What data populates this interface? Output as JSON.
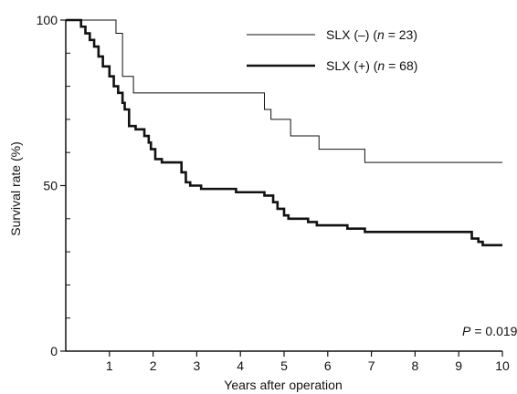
{
  "chart_data": {
    "type": "line",
    "subtype": "kaplan-meier step curves",
    "xlabel": "Years after operation",
    "ylabel": "Survival rate (%)",
    "xlim": [
      0,
      10
    ],
    "ylim": [
      0,
      100
    ],
    "x_ticks": [
      1,
      2,
      3,
      4,
      5,
      6,
      7,
      8,
      9,
      10
    ],
    "y_tick_labels": [
      0,
      50,
      100
    ],
    "y_minor_ticks": [
      10,
      20,
      30,
      40,
      60,
      70,
      80,
      90
    ],
    "grid": false,
    "legend_position": "top-right",
    "annotation": {
      "p_label": "P",
      "p_value": "= 0.019"
    },
    "series": [
      {
        "name_prefix": "SLX (–) (",
        "name_n": "n",
        "name_suffix": " = 23)",
        "style": "thin",
        "color": "#111111",
        "steps": [
          [
            0,
            100
          ],
          [
            1.15,
            96
          ],
          [
            1.3,
            83
          ],
          [
            1.55,
            78
          ],
          [
            4.55,
            73
          ],
          [
            4.7,
            70
          ],
          [
            5.15,
            65
          ],
          [
            5.8,
            61
          ],
          [
            6.85,
            57
          ],
          [
            10,
            57
          ]
        ]
      },
      {
        "name_prefix": "SLX (+) (",
        "name_n": "n",
        "name_suffix": " = 68)",
        "style": "thick",
        "color": "#111111",
        "steps": [
          [
            0,
            100
          ],
          [
            0.35,
            98
          ],
          [
            0.45,
            96
          ],
          [
            0.55,
            94
          ],
          [
            0.65,
            92
          ],
          [
            0.75,
            89
          ],
          [
            0.85,
            86
          ],
          [
            1.0,
            83
          ],
          [
            1.1,
            80
          ],
          [
            1.2,
            78
          ],
          [
            1.3,
            75
          ],
          [
            1.35,
            73
          ],
          [
            1.45,
            68
          ],
          [
            1.6,
            67
          ],
          [
            1.8,
            65
          ],
          [
            1.9,
            63
          ],
          [
            1.95,
            61
          ],
          [
            2.05,
            58
          ],
          [
            2.2,
            57
          ],
          [
            2.65,
            54
          ],
          [
            2.75,
            51
          ],
          [
            2.85,
            50
          ],
          [
            3.1,
            49
          ],
          [
            3.9,
            48
          ],
          [
            4.55,
            47
          ],
          [
            4.75,
            45
          ],
          [
            4.85,
            43
          ],
          [
            5.0,
            41
          ],
          [
            5.1,
            40
          ],
          [
            5.55,
            39
          ],
          [
            5.75,
            38
          ],
          [
            6.45,
            37
          ],
          [
            6.85,
            36
          ],
          [
            9.3,
            34
          ],
          [
            9.45,
            33
          ],
          [
            9.55,
            32
          ],
          [
            10,
            32
          ]
        ]
      }
    ]
  }
}
